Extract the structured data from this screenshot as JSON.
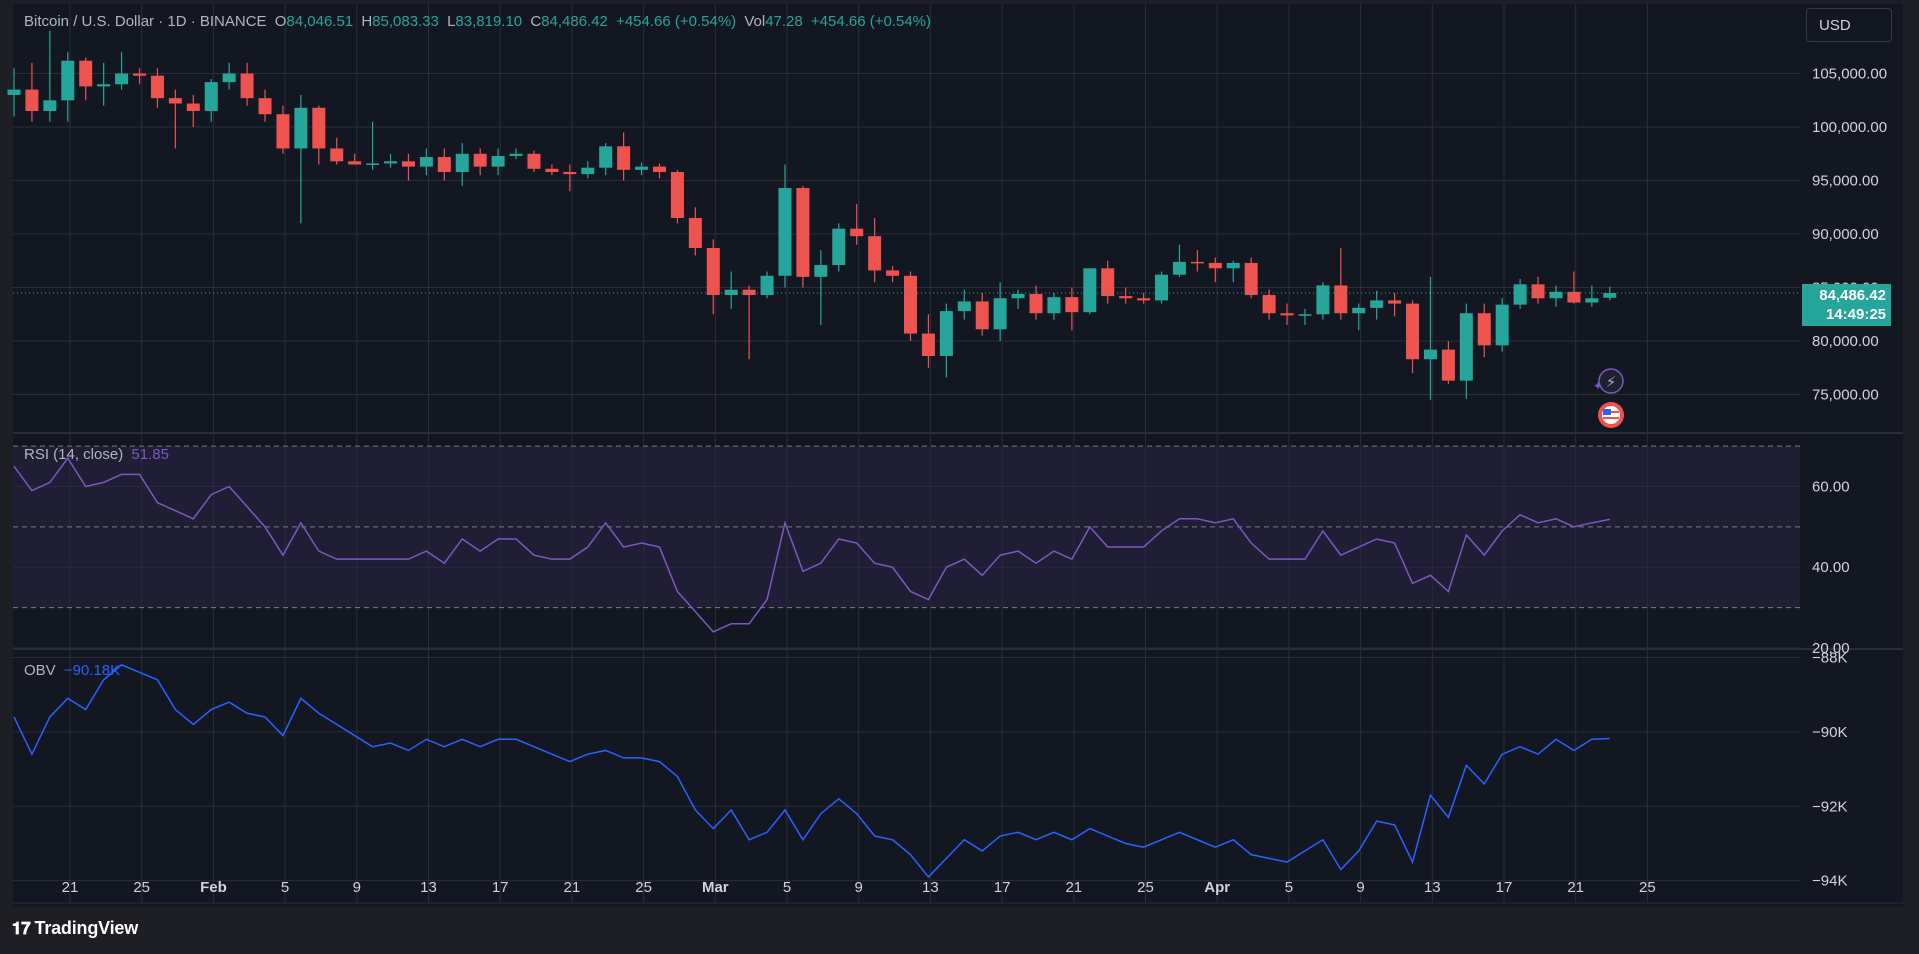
{
  "header": {
    "symbol": "Bitcoin / U.S. Dollar · 1D · BINANCE",
    "o_label": "O",
    "o_value": "84,046.51",
    "h_label": "H",
    "h_value": "85,083.33",
    "l_label": "L",
    "l_value": "83,819.10",
    "c_label": "C",
    "c_value": "84,486.42",
    "change": "+454.66 (+0.54%)",
    "vol_label": "Vol",
    "vol_value": "47.28",
    "vol_change": "+454.66 (+0.54%)"
  },
  "currency_button": "USD",
  "price_tag": {
    "price": "84,486.42",
    "countdown": "14:49:25"
  },
  "rsi_legend": {
    "label": "RSI (14, close)",
    "value": "51.85"
  },
  "obv_legend": {
    "label": "OBV",
    "value": "−90.18K"
  },
  "footer": {
    "brand": "TradingView",
    "logo_glyph": "𝟏𝟕"
  },
  "colors": {
    "up": "#26a69a",
    "down": "#ef5350",
    "rsi": "#7e57c2",
    "obv": "#2962ff",
    "grid": "#2a2e39",
    "band": "#2a2443"
  },
  "chart_data": [
    {
      "type": "candlestick",
      "title": "Bitcoin / U.S. Dollar · 1D · BINANCE",
      "ylim": [
        71500,
        111500
      ],
      "y_ticks": [
        75000,
        80000,
        85000,
        90000,
        95000,
        100000,
        105000
      ],
      "y_tick_labels": [
        "75,000.00",
        "80,000.00",
        "85,000.00",
        "90,000.00",
        "95,000.00",
        "100,000.00",
        "105,000.00"
      ],
      "x_tick_labels": [
        "21",
        "25",
        "Feb",
        "5",
        "9",
        "13",
        "17",
        "21",
        "25",
        "Mar",
        "5",
        "9",
        "13",
        "17",
        "21",
        "25",
        "Apr",
        "5",
        "9",
        "13",
        "17",
        "21",
        "25"
      ],
      "last_price": "84,486.42",
      "candles": [
        {
          "o": 103000,
          "h": 105500,
          "l": 101000,
          "c": 103500
        },
        {
          "o": 103500,
          "h": 106000,
          "l": 100500,
          "c": 101500
        },
        {
          "o": 101500,
          "h": 109000,
          "l": 100500,
          "c": 102500
        },
        {
          "o": 102500,
          "h": 107000,
          "l": 100500,
          "c": 106200
        },
        {
          "o": 106200,
          "h": 106500,
          "l": 102500,
          "c": 103800
        },
        {
          "o": 103800,
          "h": 106000,
          "l": 102000,
          "c": 104000
        },
        {
          "o": 104000,
          "h": 107000,
          "l": 103500,
          "c": 105000
        },
        {
          "o": 105000,
          "h": 105500,
          "l": 104000,
          "c": 104800
        },
        {
          "o": 104800,
          "h": 105500,
          "l": 101800,
          "c": 102700
        },
        {
          "o": 102700,
          "h": 103500,
          "l": 98000,
          "c": 102200
        },
        {
          "o": 102200,
          "h": 103000,
          "l": 100000,
          "c": 101500
        },
        {
          "o": 101500,
          "h": 104500,
          "l": 100500,
          "c": 104200
        },
        {
          "o": 104200,
          "h": 106000,
          "l": 103500,
          "c": 105000
        },
        {
          "o": 105000,
          "h": 106000,
          "l": 102000,
          "c": 102700
        },
        {
          "o": 102700,
          "h": 103500,
          "l": 100500,
          "c": 101200
        },
        {
          "o": 101200,
          "h": 102000,
          "l": 97500,
          "c": 98000
        },
        {
          "o": 98000,
          "h": 103000,
          "l": 91000,
          "c": 101800
        },
        {
          "o": 101800,
          "h": 102000,
          "l": 96500,
          "c": 98000
        },
        {
          "o": 98000,
          "h": 99000,
          "l": 96500,
          "c": 96800
        },
        {
          "o": 96800,
          "h": 97500,
          "l": 96500,
          "c": 96500
        },
        {
          "o": 96500,
          "h": 100500,
          "l": 96000,
          "c": 96600
        },
        {
          "o": 96600,
          "h": 97500,
          "l": 96200,
          "c": 96800
        },
        {
          "o": 96800,
          "h": 97500,
          "l": 95000,
          "c": 96300
        },
        {
          "o": 96300,
          "h": 98000,
          "l": 95500,
          "c": 97200
        },
        {
          "o": 97200,
          "h": 98000,
          "l": 95000,
          "c": 95800
        },
        {
          "o": 95800,
          "h": 98500,
          "l": 94500,
          "c": 97500
        },
        {
          "o": 97500,
          "h": 98000,
          "l": 95500,
          "c": 96300
        },
        {
          "o": 96300,
          "h": 98000,
          "l": 95500,
          "c": 97300
        },
        {
          "o": 97300,
          "h": 98000,
          "l": 97000,
          "c": 97500
        },
        {
          "o": 97500,
          "h": 97800,
          "l": 95800,
          "c": 96100
        },
        {
          "o": 96100,
          "h": 96500,
          "l": 95500,
          "c": 95800
        },
        {
          "o": 95800,
          "h": 96500,
          "l": 94000,
          "c": 95600
        },
        {
          "o": 95600,
          "h": 96800,
          "l": 95200,
          "c": 96200
        },
        {
          "o": 96200,
          "h": 98500,
          "l": 95500,
          "c": 98200
        },
        {
          "o": 98200,
          "h": 99500,
          "l": 95000,
          "c": 96000
        },
        {
          "o": 96000,
          "h": 96700,
          "l": 95500,
          "c": 96300
        },
        {
          "o": 96300,
          "h": 96600,
          "l": 95200,
          "c": 95800
        },
        {
          "o": 95800,
          "h": 96000,
          "l": 91000,
          "c": 91500
        },
        {
          "o": 91500,
          "h": 92500,
          "l": 88000,
          "c": 88700
        },
        {
          "o": 88700,
          "h": 89500,
          "l": 82500,
          "c": 84300
        },
        {
          "o": 84300,
          "h": 86500,
          "l": 83000,
          "c": 84800
        },
        {
          "o": 84800,
          "h": 85200,
          "l": 78300,
          "c": 84300
        },
        {
          "o": 84300,
          "h": 86500,
          "l": 84000,
          "c": 86100
        },
        {
          "o": 86100,
          "h": 96500,
          "l": 85000,
          "c": 94300
        },
        {
          "o": 94300,
          "h": 94500,
          "l": 85000,
          "c": 86000
        },
        {
          "o": 86000,
          "h": 88500,
          "l": 81500,
          "c": 87100
        },
        {
          "o": 87100,
          "h": 91000,
          "l": 86500,
          "c": 90500
        },
        {
          "o": 90500,
          "h": 92800,
          "l": 89000,
          "c": 89800
        },
        {
          "o": 89800,
          "h": 91500,
          "l": 85500,
          "c": 86600
        },
        {
          "o": 86600,
          "h": 87000,
          "l": 85500,
          "c": 86100
        },
        {
          "o": 86100,
          "h": 86500,
          "l": 80000,
          "c": 80700
        },
        {
          "o": 80700,
          "h": 82500,
          "l": 77500,
          "c": 78600
        },
        {
          "o": 78600,
          "h": 83500,
          "l": 76600,
          "c": 82800
        },
        {
          "o": 82800,
          "h": 84800,
          "l": 82000,
          "c": 83700
        },
        {
          "o": 83700,
          "h": 84500,
          "l": 80500,
          "c": 81100
        },
        {
          "o": 81100,
          "h": 85500,
          "l": 80000,
          "c": 84000
        },
        {
          "o": 84000,
          "h": 84800,
          "l": 83000,
          "c": 84400
        },
        {
          "o": 84400,
          "h": 85200,
          "l": 82000,
          "c": 82600
        },
        {
          "o": 82600,
          "h": 84500,
          "l": 82000,
          "c": 84100
        },
        {
          "o": 84100,
          "h": 85000,
          "l": 81000,
          "c": 82700
        },
        {
          "o": 82700,
          "h": 86800,
          "l": 82500,
          "c": 86800
        },
        {
          "o": 86800,
          "h": 87500,
          "l": 83500,
          "c": 84200
        },
        {
          "o": 84200,
          "h": 85000,
          "l": 83500,
          "c": 84000
        },
        {
          "o": 84000,
          "h": 84500,
          "l": 83500,
          "c": 83800
        },
        {
          "o": 83800,
          "h": 86500,
          "l": 83500,
          "c": 86200
        },
        {
          "o": 86200,
          "h": 89000,
          "l": 86000,
          "c": 87400
        },
        {
          "o": 87400,
          "h": 88500,
          "l": 86500,
          "c": 87300
        },
        {
          "o": 87300,
          "h": 87800,
          "l": 85500,
          "c": 86800
        },
        {
          "o": 86800,
          "h": 87500,
          "l": 85500,
          "c": 87300
        },
        {
          "o": 87300,
          "h": 87800,
          "l": 84000,
          "c": 84300
        },
        {
          "o": 84300,
          "h": 84800,
          "l": 82000,
          "c": 82600
        },
        {
          "o": 82600,
          "h": 83500,
          "l": 81500,
          "c": 82400
        },
        {
          "o": 82400,
          "h": 83000,
          "l": 81500,
          "c": 82500
        },
        {
          "o": 82500,
          "h": 85500,
          "l": 82000,
          "c": 85200
        },
        {
          "o": 85200,
          "h": 88700,
          "l": 82000,
          "c": 82600
        },
        {
          "o": 82600,
          "h": 83500,
          "l": 81000,
          "c": 83100
        },
        {
          "o": 83100,
          "h": 84700,
          "l": 82000,
          "c": 83800
        },
        {
          "o": 83800,
          "h": 84500,
          "l": 82300,
          "c": 83500
        },
        {
          "o": 83500,
          "h": 83800,
          "l": 77000,
          "c": 78300
        },
        {
          "o": 78300,
          "h": 86000,
          "l": 74500,
          "c": 79200
        },
        {
          "o": 79200,
          "h": 80000,
          "l": 76000,
          "c": 76300
        },
        {
          "o": 76300,
          "h": 83500,
          "l": 74600,
          "c": 82600
        },
        {
          "o": 82600,
          "h": 83500,
          "l": 78500,
          "c": 79600
        },
        {
          "o": 79600,
          "h": 84000,
          "l": 79000,
          "c": 83400
        },
        {
          "o": 83400,
          "h": 85800,
          "l": 83000,
          "c": 85300
        },
        {
          "o": 85300,
          "h": 86000,
          "l": 83500,
          "c": 84000
        },
        {
          "o": 84000,
          "h": 85200,
          "l": 83200,
          "c": 84600
        },
        {
          "o": 84600,
          "h": 86500,
          "l": 83500,
          "c": 83600
        },
        {
          "o": 83600,
          "h": 85200,
          "l": 83200,
          "c": 84000
        },
        {
          "o": 84046.51,
          "h": 85083.33,
          "l": 83819.1,
          "c": 84486.42
        }
      ]
    },
    {
      "type": "line",
      "title": "RSI (14, close)",
      "ylim": [
        20,
        73
      ],
      "y_ticks": [
        20,
        40,
        60
      ],
      "y_tick_labels": [
        "20.00",
        "40.00",
        "60.00"
      ],
      "bands": [
        30,
        50,
        70
      ],
      "values": [
        65,
        59,
        61,
        67,
        60,
        61,
        63,
        63,
        56,
        54,
        52,
        58,
        60,
        55,
        50,
        43,
        51,
        44,
        42,
        42,
        42,
        42,
        42,
        44,
        41,
        47,
        44,
        47,
        47,
        43,
        42,
        42,
        45,
        51,
        45,
        46,
        45,
        34,
        29,
        24,
        26,
        26,
        32,
        51,
        39,
        41,
        47,
        46,
        41,
        40,
        34,
        32,
        40,
        42,
        38,
        43,
        44,
        41,
        44,
        42,
        50,
        45,
        45,
        45,
        49,
        52,
        52,
        51,
        52,
        46,
        42,
        42,
        42,
        49,
        43,
        45,
        47,
        46,
        36,
        38,
        34,
        48,
        43,
        49,
        53,
        51,
        52,
        50,
        51,
        51.85
      ]
    },
    {
      "type": "line",
      "title": "OBV",
      "ylim": [
        -94.6,
        -87.8
      ],
      "y_ticks": [
        -88,
        -90,
        -92,
        -94
      ],
      "y_tick_labels": [
        "−88K",
        "−90K",
        "−92K",
        "−94K"
      ],
      "values": [
        -89.6,
        -90.6,
        -89.6,
        -89.1,
        -89.4,
        -88.6,
        -88.2,
        -88.4,
        -88.6,
        -89.4,
        -89.8,
        -89.4,
        -89.2,
        -89.5,
        -89.6,
        -90.1,
        -89.1,
        -89.5,
        -89.8,
        -90.1,
        -90.4,
        -90.3,
        -90.5,
        -90.2,
        -90.4,
        -90.2,
        -90.4,
        -90.2,
        -90.2,
        -90.4,
        -90.6,
        -90.8,
        -90.6,
        -90.5,
        -90.7,
        -90.7,
        -90.8,
        -91.2,
        -92.1,
        -92.6,
        -92.1,
        -92.9,
        -92.7,
        -92.1,
        -92.9,
        -92.2,
        -91.8,
        -92.2,
        -92.8,
        -92.9,
        -93.3,
        -93.9,
        -93.4,
        -92.9,
        -93.2,
        -92.8,
        -92.7,
        -92.9,
        -92.7,
        -92.9,
        -92.6,
        -92.8,
        -93.0,
        -93.1,
        -92.9,
        -92.7,
        -92.9,
        -93.1,
        -92.9,
        -93.3,
        -93.4,
        -93.5,
        -93.2,
        -92.9,
        -93.7,
        -93.2,
        -92.4,
        -92.5,
        -93.5,
        -91.7,
        -92.3,
        -90.9,
        -91.4,
        -90.6,
        -90.4,
        -90.6,
        -90.2,
        -90.5,
        -90.2,
        -90.18
      ]
    }
  ]
}
